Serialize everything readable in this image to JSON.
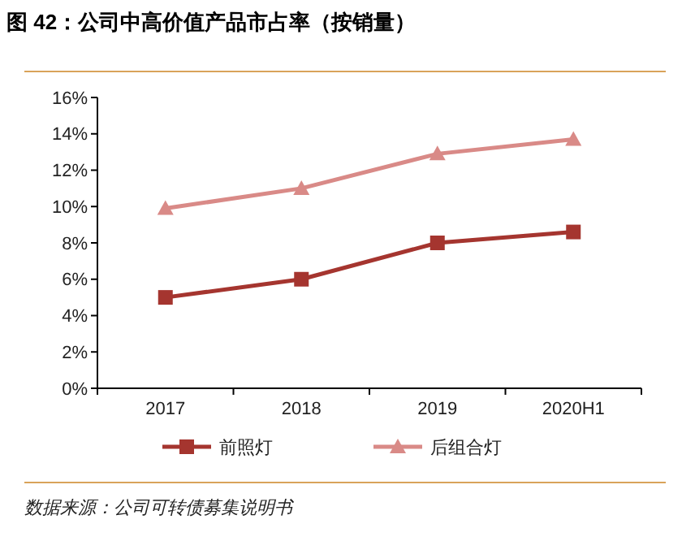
{
  "chart_data": {
    "type": "line",
    "title": "图 42：公司中高价值产品市占率（按销量）",
    "categories": [
      "2017",
      "2018",
      "2019",
      "2020H1"
    ],
    "series": [
      {
        "name": "前照灯",
        "color": "#a5352f",
        "values": [
          5.0,
          6.0,
          8.0,
          8.6
        ],
        "marker": "square"
      },
      {
        "name": "后组合灯",
        "color": "#d98a87",
        "values": [
          9.9,
          11.0,
          12.9,
          13.7
        ],
        "marker": "triangle"
      }
    ],
    "ylim": [
      0,
      16
    ],
    "yticks": [
      {
        "value": 0,
        "label": "0%"
      },
      {
        "value": 2,
        "label": "2%"
      },
      {
        "value": 4,
        "label": "4%"
      },
      {
        "value": 6,
        "label": "6%"
      },
      {
        "value": 8,
        "label": "8%"
      },
      {
        "value": 10,
        "label": "10%"
      },
      {
        "value": 12,
        "label": "12%"
      },
      {
        "value": 14,
        "label": "14%"
      },
      {
        "value": 16,
        "label": "16%"
      }
    ],
    "legend": "bottom",
    "grid": false,
    "annotations": [
      "数据来源：公司可转债募集说明书"
    ]
  }
}
